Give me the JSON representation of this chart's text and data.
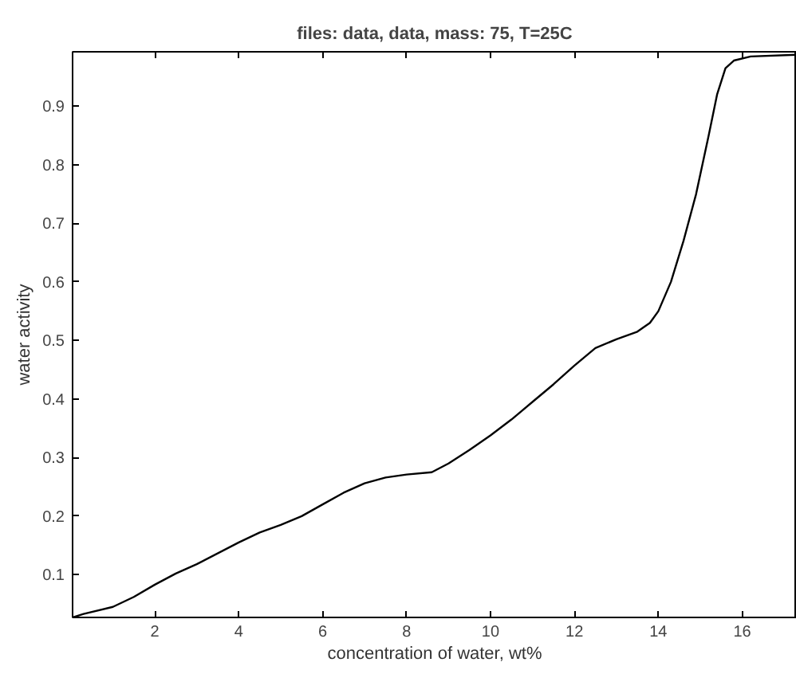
{
  "chart_data": {
    "type": "line",
    "title": "files: data, data, mass: 75, T=25C",
    "xlabel": "concentration of water, wt%",
    "ylabel": "water activity",
    "x": [
      0.04,
      0.3,
      1,
      1.5,
      2,
      2.5,
      3,
      4,
      4.5,
      5,
      5.5,
      6,
      6.5,
      7,
      7.5,
      8,
      8.6,
      9,
      9.5,
      10,
      10.5,
      11,
      11.5,
      12,
      12.5,
      13,
      13.5,
      13.8,
      14,
      14.3,
      14.6,
      14.9,
      15.2,
      15.4,
      15.6,
      15.8,
      16.2,
      17.3
    ],
    "series": [
      {
        "color": "#000000",
        "values": [
          0.027,
          0.033,
          0.045,
          0.062,
          0.083,
          0.102,
          0.118,
          0.155,
          0.172,
          0.185,
          0.2,
          0.22,
          0.24,
          0.256,
          0.266,
          0.271,
          0.275,
          0.29,
          0.313,
          0.338,
          0.365,
          0.395,
          0.425,
          0.457,
          0.487,
          0.502,
          0.515,
          0.53,
          0.55,
          0.6,
          0.67,
          0.75,
          0.85,
          0.92,
          0.965,
          0.978,
          0.985,
          0.988
        ]
      }
    ],
    "xlim": [
      0.04,
      17.3
    ],
    "ylim": [
      0.027,
      0.993
    ],
    "xticks": [
      2,
      4,
      6,
      8,
      10,
      12,
      14,
      16
    ],
    "yticks": [
      0.1,
      0.2,
      0.3,
      0.4,
      0.5,
      0.6,
      0.7,
      0.8,
      0.9
    ],
    "grid": false,
    "marker": "none",
    "line_style": "solid"
  }
}
